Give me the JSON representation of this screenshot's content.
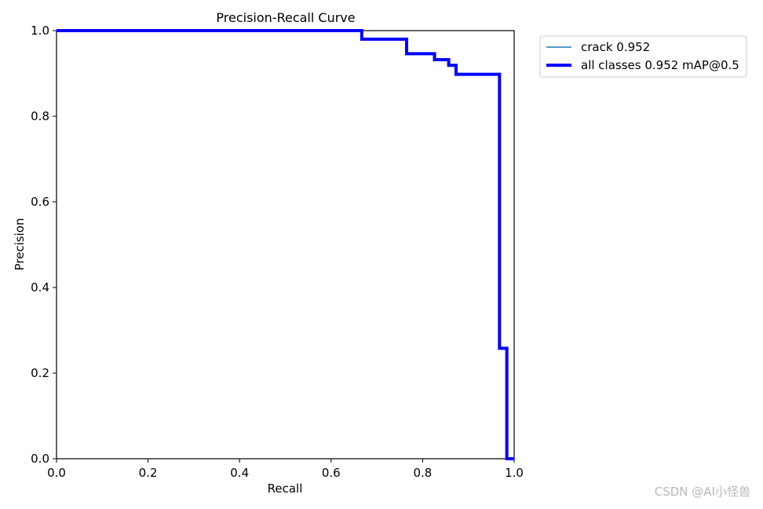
{
  "watermark": "CSDN @AI小怪兽",
  "chart_data": {
    "type": "line",
    "title": "Precision-Recall Curve",
    "xlabel": "Recall",
    "ylabel": "Precision",
    "xlim": [
      0,
      1
    ],
    "ylim": [
      0,
      1
    ],
    "xticks": [
      "0.0",
      "0.2",
      "0.4",
      "0.6",
      "0.8",
      "1.0"
    ],
    "yticks": [
      "0.0",
      "0.2",
      "0.4",
      "0.6",
      "0.8",
      "1.0"
    ],
    "grid": false,
    "legend_position": "outside top-right",
    "series": [
      {
        "name": "crack 0.952",
        "color": "#1f77b4",
        "linewidth": "thin",
        "points": [
          [
            0.0,
            1.0
          ],
          [
            0.667,
            1.0
          ],
          [
            0.667,
            0.98
          ],
          [
            0.765,
            0.98
          ],
          [
            0.765,
            0.946
          ],
          [
            0.826,
            0.946
          ],
          [
            0.826,
            0.932
          ],
          [
            0.857,
            0.932
          ],
          [
            0.857,
            0.919
          ],
          [
            0.873,
            0.919
          ],
          [
            0.873,
            0.898
          ],
          [
            0.968,
            0.898
          ],
          [
            0.968,
            0.258
          ],
          [
            0.984,
            0.258
          ],
          [
            0.984,
            0.0
          ],
          [
            1.0,
            0.0
          ]
        ]
      },
      {
        "name": "all classes 0.952 mAP@0.5",
        "color": "#0000ff",
        "linewidth": "thick",
        "points": [
          [
            0.0,
            1.0
          ],
          [
            0.667,
            1.0
          ],
          [
            0.667,
            0.98
          ],
          [
            0.765,
            0.98
          ],
          [
            0.765,
            0.946
          ],
          [
            0.826,
            0.946
          ],
          [
            0.826,
            0.932
          ],
          [
            0.857,
            0.932
          ],
          [
            0.857,
            0.919
          ],
          [
            0.873,
            0.919
          ],
          [
            0.873,
            0.898
          ],
          [
            0.968,
            0.898
          ],
          [
            0.968,
            0.258
          ],
          [
            0.984,
            0.258
          ],
          [
            0.984,
            0.0
          ],
          [
            1.0,
            0.0
          ]
        ]
      }
    ]
  }
}
